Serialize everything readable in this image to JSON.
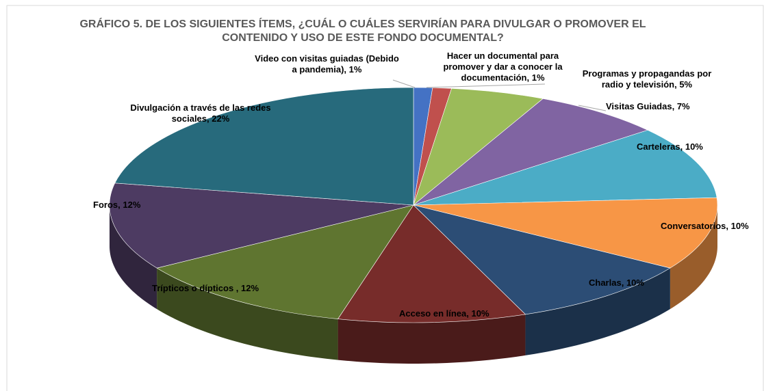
{
  "chart_data": {
    "type": "pie",
    "title": "GRÁFICO 5.  DE LOS SIGUIENTES ÍTEMS, ¿CUÁL O CUÁLES SERVIRÍAN PARA DIVULGAR O PROMOVER EL CONTENIDO Y USO DE ESTE FONDO DOCUMENTAL?",
    "categories": [
      "Video con visitas guiadas (Debido a pandemia),",
      "Hacer un documental para promover y dar a conocer la documentación,",
      "Programas y propagandas por radio y televisión,",
      "Visitas Guiadas,",
      "Carteleras,",
      "Conversatorios,",
      "Charlas,",
      "Acceso en línea,",
      "Trípticos o dípticos ,",
      "Foros,",
      "Divulgación a través de las redes sociales,"
    ],
    "values": [
      1,
      1,
      5,
      7,
      10,
      10,
      10,
      10,
      12,
      12,
      22
    ],
    "value_labels": [
      "1%",
      "1%",
      "5%",
      "7%",
      "10%",
      "10%",
      "10%",
      "10%",
      "12%",
      "12%",
      "22%"
    ],
    "colors": [
      "#4472c4",
      "#c0504d",
      "#9bbb59",
      "#8064a2",
      "#4bacc6",
      "#f79646",
      "#2c4d75",
      "#772c2a",
      "#5f7530",
      "#4d3b62",
      "#276a7c"
    ]
  }
}
